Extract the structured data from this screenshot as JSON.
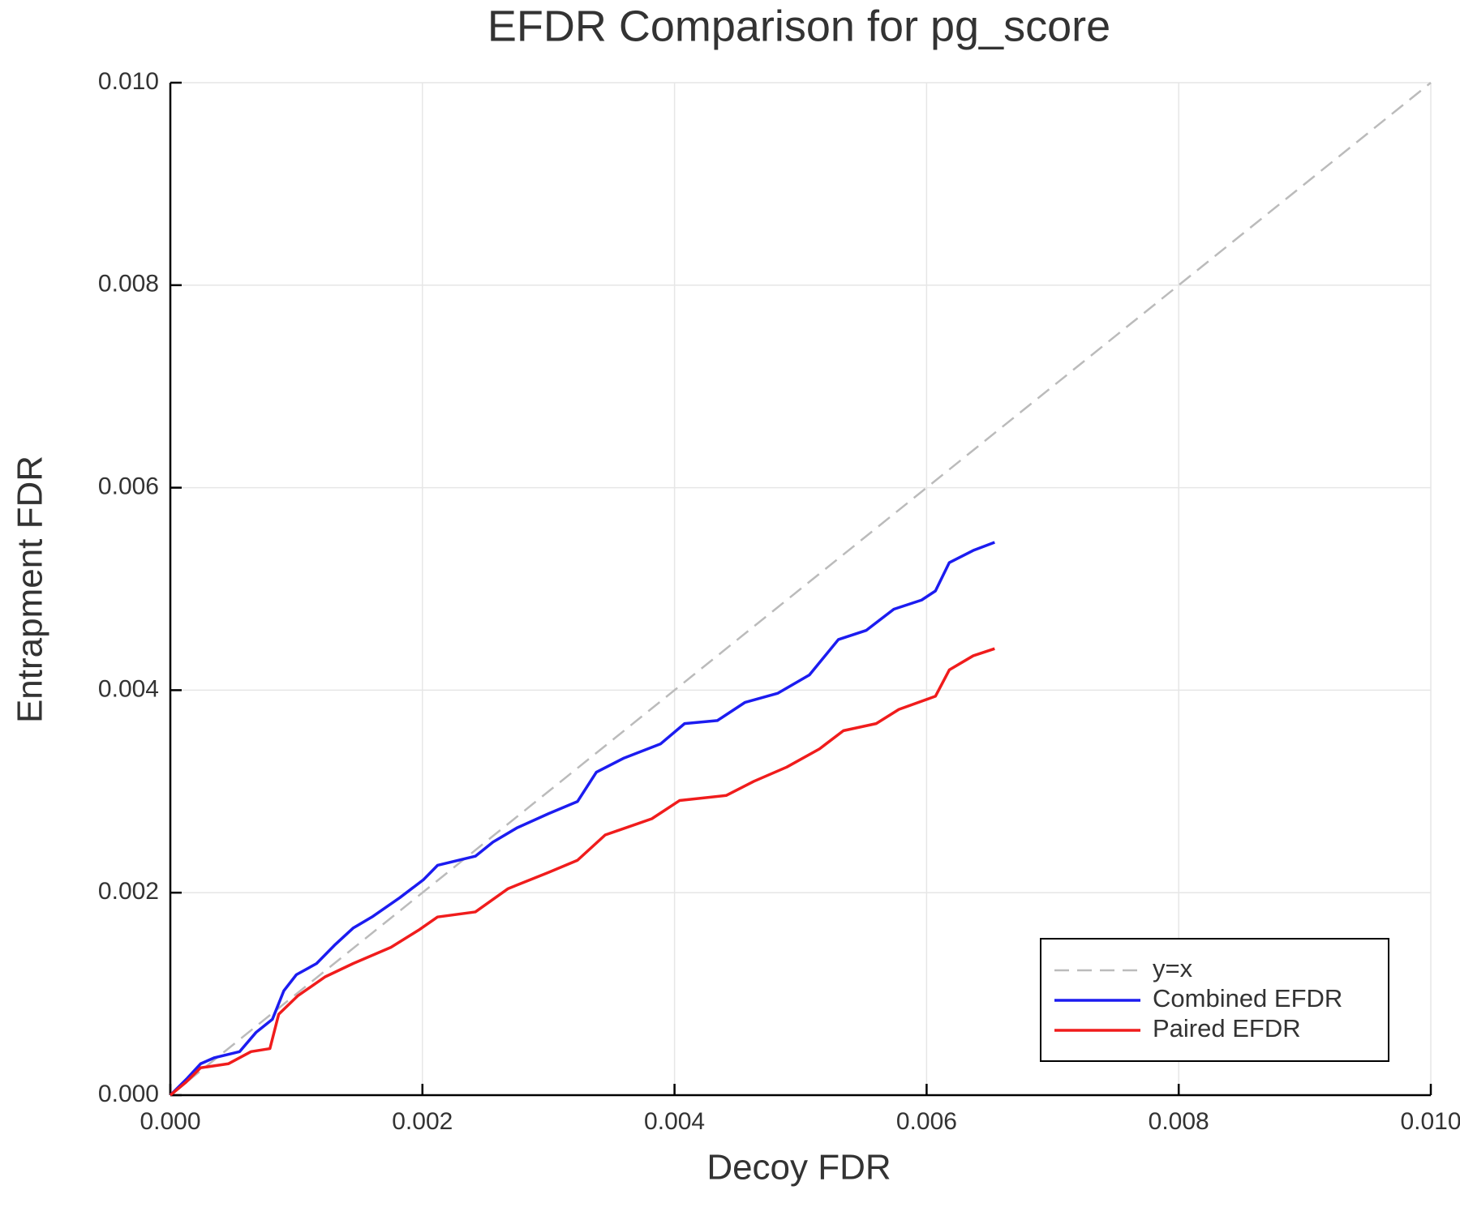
{
  "chart_data": {
    "type": "line",
    "title": "EFDR Comparison for pg_score",
    "x_label": "Decoy FDR",
    "y_label": "Entrapment FDR",
    "xlim": [
      0,
      0.01
    ],
    "ylim": [
      0,
      0.01
    ],
    "xticks": [
      {
        "value": 0,
        "label": "0.000"
      },
      0.002,
      0.004,
      0.006,
      0.008,
      {
        "value": 0.01,
        "label": "0.010"
      }
    ],
    "yticks": [
      {
        "value": 0,
        "label": "0.000"
      },
      0.002,
      0.004,
      0.006,
      0.008,
      {
        "value": 0.01,
        "label": "0.010"
      }
    ],
    "grid": true,
    "legend": "bottom right",
    "series": [
      {
        "name": "y=x",
        "color": "#bbbbbb",
        "style": "dashed",
        "x": [
          0,
          0.01
        ],
        "values": [
          0,
          0.01
        ]
      },
      {
        "name": "Combined EFDR",
        "color": "#1c1cf0",
        "style": "solid",
        "x": [
          0,
          0.000126,
          0.00024,
          0.00035,
          0.00055,
          0.00068,
          0.00081,
          0.0009,
          0.001,
          0.00116,
          0.00131,
          0.00145,
          0.0016,
          0.00182,
          0.00201,
          0.00212,
          0.00242,
          0.00256,
          0.00275,
          0.003,
          0.00323,
          0.00338,
          0.0036,
          0.00389,
          0.00408,
          0.00434,
          0.00456,
          0.00482,
          0.00507,
          0.0053,
          0.00552,
          0.00574,
          0.00596,
          0.00607,
          0.00618,
          0.00637,
          0.00654
        ],
        "values": [
          0,
          0.000156,
          0.00031,
          0.00037,
          0.00043,
          0.00062,
          0.00075,
          0.00103,
          0.00119,
          0.0013,
          0.00149,
          0.00165,
          0.00176,
          0.00195,
          0.00213,
          0.00227,
          0.00236,
          0.0025,
          0.00264,
          0.00278,
          0.0029,
          0.00319,
          0.00333,
          0.00347,
          0.00367,
          0.0037,
          0.00388,
          0.00397,
          0.00415,
          0.0045,
          0.00459,
          0.0048,
          0.00489,
          0.00498,
          0.00526,
          0.00538,
          0.00546
        ]
      },
      {
        "name": "Paired EFDR",
        "color": "#f01c1c",
        "style": "solid",
        "x": [
          0,
          0.000126,
          0.00024,
          0.00046,
          0.00064,
          0.00079,
          0.00086,
          0.00101,
          0.00123,
          0.00145,
          0.00175,
          0.00197,
          0.00212,
          0.00242,
          0.00268,
          0.003,
          0.00323,
          0.00345,
          0.00382,
          0.00404,
          0.00441,
          0.00463,
          0.00489,
          0.00515,
          0.00534,
          0.0056,
          0.00578,
          0.00607,
          0.00618,
          0.00637,
          0.00654
        ],
        "values": [
          0,
          0.00013,
          0.00027,
          0.00031,
          0.00043,
          0.00046,
          0.0008,
          0.00098,
          0.00117,
          0.0013,
          0.00146,
          0.00163,
          0.00176,
          0.00181,
          0.00204,
          0.0022,
          0.00232,
          0.00257,
          0.00273,
          0.00291,
          0.00296,
          0.0031,
          0.00324,
          0.00342,
          0.0036,
          0.00367,
          0.00381,
          0.00394,
          0.0042,
          0.00434,
          0.00441
        ]
      }
    ]
  }
}
